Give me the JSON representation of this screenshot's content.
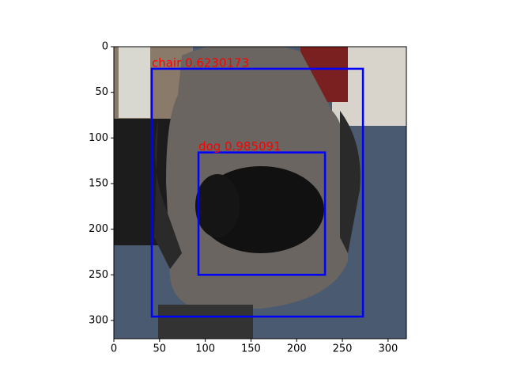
{
  "chart_data": {
    "type": "detection",
    "xlim": [
      0,
      320
    ],
    "ylim": [
      320,
      0
    ],
    "xticks": [
      0,
      50,
      100,
      150,
      200,
      250,
      300
    ],
    "yticks": [
      0,
      50,
      100,
      150,
      200,
      250,
      300
    ],
    "box_color": "#0000ff",
    "label_color": "#ff0000",
    "boxes": [
      {
        "label": "chair 0.6230173",
        "x0": 41.5,
        "y0": 24.2,
        "x1": 272.5,
        "y1": 295.8
      },
      {
        "label": "dog 0.985091",
        "x0": 92.6,
        "y0": 115.9,
        "x1": 231,
        "y1": 250
      }
    ]
  }
}
